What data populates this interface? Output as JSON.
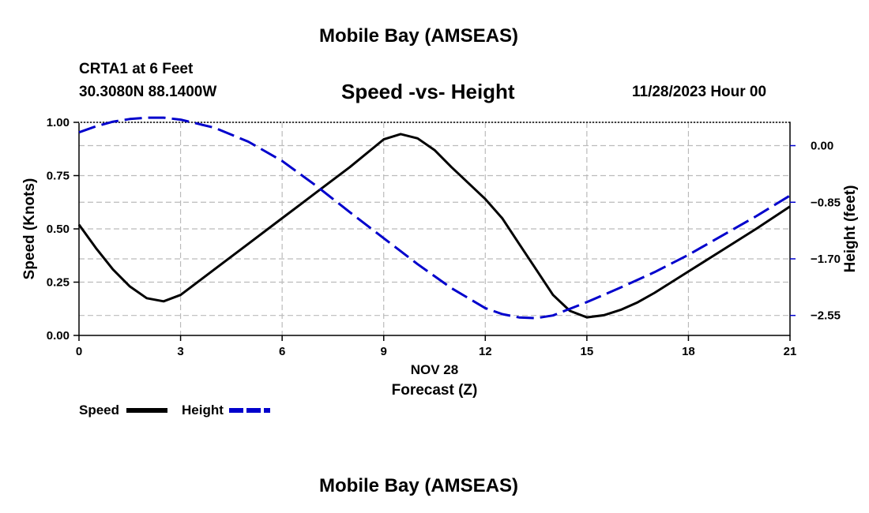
{
  "page": {
    "header_title": "Mobile Bay (AMSEAS)",
    "footer_title": "Mobile Bay (AMSEAS)"
  },
  "station": {
    "name": "CRTA1 at 6 Feet",
    "coords": "30.3080N  88.1400W"
  },
  "chart_header": {
    "title": "Speed -vs- Height",
    "date": "11/28/2023 Hour 00"
  },
  "colors": {
    "speed": "#000000",
    "height": "#0000cc",
    "grid": "#bbbbbb"
  },
  "chart_data": {
    "type": "line",
    "title": "Speed -vs- Height",
    "xlabel": "Forecast (Z)",
    "xdate_label": "NOV 28",
    "x_range": [
      0,
      21
    ],
    "x_ticks": [
      0,
      3,
      6,
      9,
      12,
      15,
      18,
      21
    ],
    "x_tick_labels": [
      "0",
      "3",
      "6",
      "9",
      "12",
      "15",
      "18",
      "21"
    ],
    "grid": true,
    "legend_position": "bottom-left",
    "y_left": {
      "label": "Speed (Knots)",
      "range": [
        0,
        1.0
      ],
      "ticks": [
        0,
        0.25,
        0.5,
        0.75,
        1.0
      ],
      "tick_labels": [
        "0.00",
        "0.25",
        "0.50",
        "0.75",
        "1.00"
      ]
    },
    "y_right": {
      "label": "Height (feet)",
      "range": [
        -2.85,
        0.35
      ],
      "ticks": [
        0,
        -0.85,
        -1.7,
        -2.55
      ],
      "tick_labels": [
        "0.00",
        "−0.85",
        "−1.70",
        "−2.55"
      ]
    },
    "series": [
      {
        "name": "Speed",
        "axis": "left",
        "style": "solid",
        "x": [
          0,
          0.5,
          1,
          1.5,
          2,
          2.5,
          3,
          4,
          5,
          6,
          7,
          8,
          9,
          9.5,
          10,
          10.5,
          11,
          12,
          12.5,
          13,
          13.5,
          14,
          14.5,
          15,
          15.5,
          16,
          16.5,
          17,
          18,
          19,
          20,
          21
        ],
        "values": [
          0.52,
          0.41,
          0.31,
          0.23,
          0.175,
          0.16,
          0.19,
          0.31,
          0.43,
          0.55,
          0.67,
          0.79,
          0.92,
          0.945,
          0.925,
          0.87,
          0.79,
          0.64,
          0.55,
          0.43,
          0.31,
          0.19,
          0.115,
          0.085,
          0.095,
          0.12,
          0.155,
          0.2,
          0.3,
          0.4,
          0.5,
          0.605
        ]
      },
      {
        "name": "Height",
        "axis": "right",
        "style": "dashed",
        "x": [
          0,
          0.5,
          1,
          1.5,
          2,
          2.5,
          3,
          4,
          5,
          6,
          7,
          8,
          9,
          10,
          11,
          12,
          12.5,
          13,
          13.5,
          14,
          15,
          16,
          17,
          18,
          19,
          20,
          21
        ],
        "values": [
          0.2,
          0.29,
          0.36,
          0.4,
          0.42,
          0.42,
          0.39,
          0.27,
          0.06,
          -0.23,
          -0.6,
          -1.0,
          -1.39,
          -1.78,
          -2.14,
          -2.44,
          -2.53,
          -2.58,
          -2.59,
          -2.55,
          -2.35,
          -2.13,
          -1.9,
          -1.64,
          -1.35,
          -1.06,
          -0.75
        ]
      }
    ],
    "legend": [
      {
        "name": "Speed",
        "style": "solid"
      },
      {
        "name": "Height",
        "style": "dashed"
      }
    ]
  }
}
